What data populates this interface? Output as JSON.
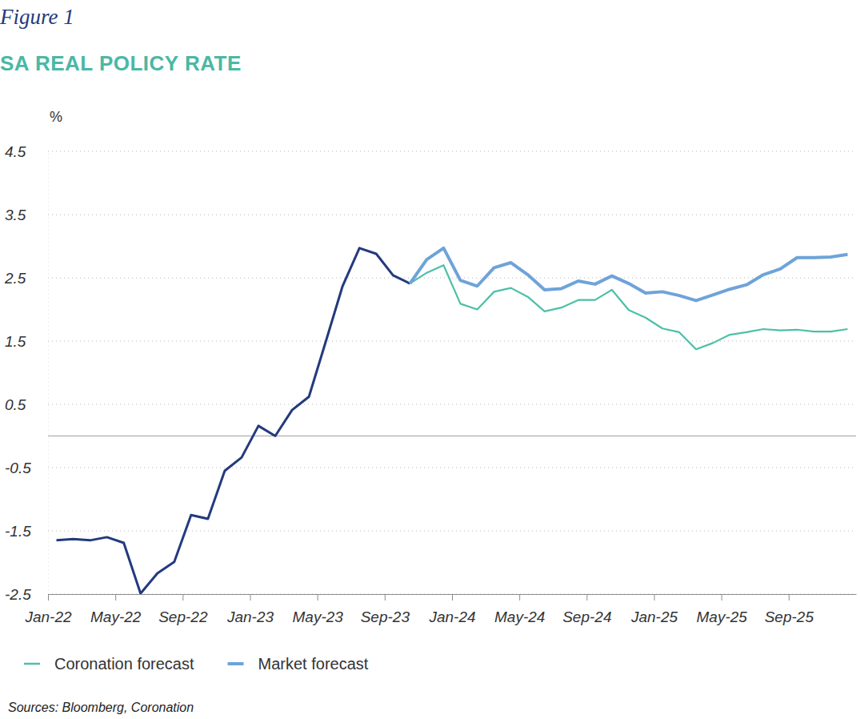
{
  "chart_data": {
    "type": "line",
    "caption": "Figure 1",
    "title": "SA REAL POLICY RATE",
    "ylabel": "%",
    "source": "Sources: Bloomberg, Coronation",
    "categories": [
      "Jan-22",
      null,
      null,
      null,
      "May-22",
      null,
      null,
      null,
      "Sep-22",
      null,
      null,
      null,
      "Jan-23",
      null,
      null,
      null,
      "May-23",
      null,
      null,
      null,
      "Sep-23",
      null,
      null,
      null,
      "Jan-24",
      null,
      null,
      null,
      "May-24",
      null,
      null,
      null,
      "Sep-24",
      null,
      null,
      null,
      "Jan-25",
      null,
      null,
      null,
      "May-25",
      null,
      null,
      null,
      "Sep-25",
      null,
      null,
      null
    ],
    "series": [
      {
        "color": "#233a7d",
        "line_style": "solid",
        "values": [
          -1.65,
          -1.63,
          -1.65,
          -1.6,
          -1.69,
          -2.49,
          -2.17,
          -1.99,
          -1.25,
          -1.31,
          -0.55,
          -0.34,
          0.16,
          0,
          0.41,
          0.62,
          1.49,
          2.37,
          2.97,
          2.88,
          2.54,
          2.41,
          null,
          null,
          null,
          null,
          null,
          null,
          null,
          null,
          null,
          null,
          null,
          null,
          null,
          null,
          null,
          null,
          null,
          null,
          null,
          null,
          null,
          null,
          null,
          null,
          null,
          null
        ]
      },
      {
        "name": "Coronation forecast",
        "color": "#4cc0a8",
        "line_style": "solid",
        "values": [
          null,
          null,
          null,
          null,
          null,
          null,
          null,
          null,
          null,
          null,
          null,
          null,
          null,
          null,
          null,
          null,
          null,
          null,
          null,
          null,
          null,
          2.41,
          2.58,
          2.7,
          2.09,
          2.0,
          2.28,
          2.34,
          2.2,
          1.97,
          2.03,
          2.15,
          2.15,
          2.31,
          1.99,
          1.87,
          1.7,
          1.64,
          1.37,
          1.47,
          1.6,
          1.64,
          1.69,
          1.67,
          1.68,
          1.65,
          1.65,
          1.69
        ]
      },
      {
        "name": "Market forecast",
        "color": "#6ea3d9",
        "line_style": "solid",
        "values": [
          null,
          null,
          null,
          null,
          null,
          null,
          null,
          null,
          null,
          null,
          null,
          null,
          null,
          null,
          null,
          null,
          null,
          null,
          null,
          null,
          null,
          2.41,
          2.79,
          2.97,
          2.46,
          2.37,
          2.66,
          2.74,
          2.55,
          2.31,
          2.33,
          2.45,
          2.4,
          2.53,
          2.41,
          2.26,
          2.28,
          2.22,
          2.14,
          2.23,
          2.32,
          2.39,
          2.55,
          2.64,
          2.82,
          2.82,
          2.83,
          2.87
        ]
      }
    ],
    "ylim": [
      -2.5,
      4.5
    ],
    "yticks": [
      -2.5,
      -1.5,
      -0.5,
      0.5,
      1.5,
      2.5,
      3.5,
      4.5
    ],
    "grid": true,
    "legend": "bottom"
  }
}
